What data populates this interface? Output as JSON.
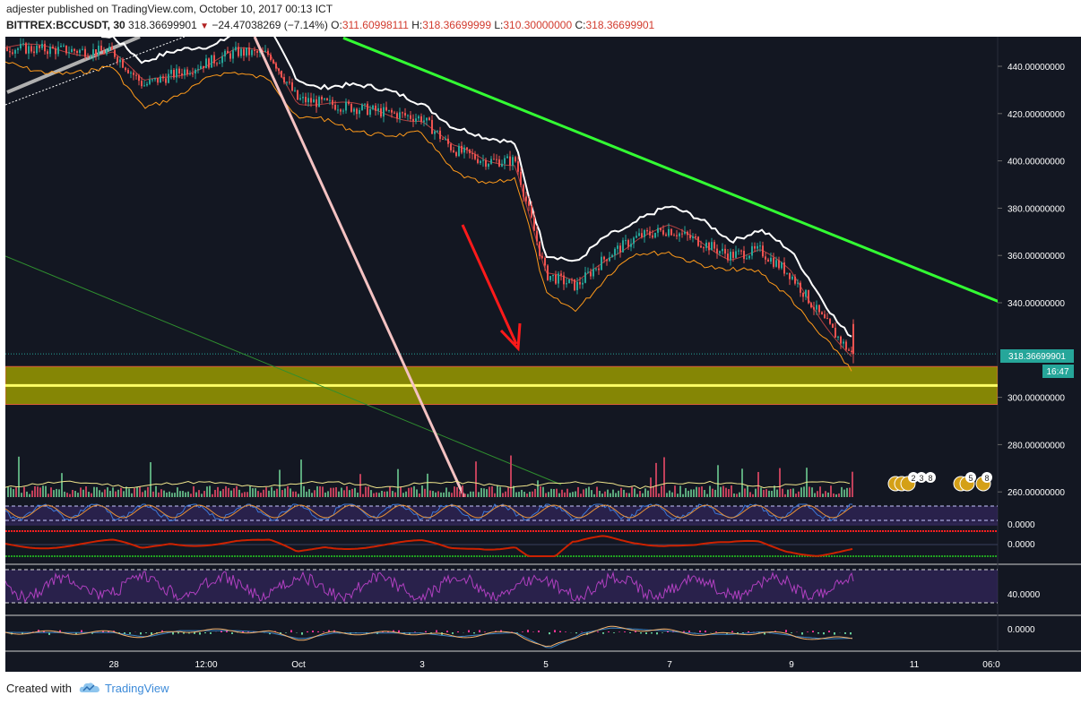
{
  "header": {
    "publisher": "adjester",
    "published_text": "published on TradingView.com, October 10, 2017 00:13 ICT",
    "symbol": "BITTREX:BCCUSDT, 30",
    "last_price": "318.36699901",
    "change": "−24.47038269 (−7.14%)",
    "open_label": "O:",
    "open_value": "311.60998111",
    "high_label": "H:",
    "high_value": "318.36699999",
    "low_label": "L:",
    "low_value": "310.30000000",
    "close_label": "C:",
    "close_value": "318.36699901"
  },
  "price_axis": {
    "ticks": [
      "440.00000000",
      "420.00000000",
      "400.00000000",
      "380.00000000",
      "360.00000000",
      "340.00000000",
      "300.00000000",
      "280.00000000",
      "260.00000000"
    ],
    "current_price_label": "318.36699901",
    "countdown_label": "16:47"
  },
  "time_axis": {
    "ticks": [
      "28",
      "12:00",
      "Oct",
      "3",
      "5",
      "7",
      "9",
      "11",
      "06:0"
    ]
  },
  "indicator_axes": {
    "stoch_value": "0.0000",
    "osc_value": "0.0000",
    "rsi_value": "40.0000",
    "macd_value": "0.0000"
  },
  "event_badges": {
    "group1_counts": [
      "2",
      "3",
      "8"
    ],
    "group2_counts": [
      "5",
      "8"
    ]
  },
  "footer": {
    "created_with": "Created with",
    "brand": "TradingView"
  },
  "colors": {
    "background": "#131722",
    "trendline_green": "#33ff33",
    "trendline_pink": "#f4c2c2",
    "arrow_red": "#ff1a1a",
    "support_zone": "#9a9a00",
    "support_line": "#ffff66",
    "price_tag": "#26a69a",
    "bollinger_upper": "#ffffff",
    "bollinger_lower": "#ff9a1a",
    "candle_up": "#26a69a",
    "candle_down": "#ef5350"
  },
  "chart_data": {
    "type": "candlestick",
    "title": "BITTREX:BCCUSDT, 30",
    "ylim": [
      255,
      452
    ],
    "price_path": [
      {
        "x": "Sep 27",
        "y": 448
      },
      {
        "x": "Sep 28",
        "y": 446
      },
      {
        "x": "Sep 28 12:00",
        "y": 432
      },
      {
        "x": "Sep 29",
        "y": 446
      },
      {
        "x": "Sep 30",
        "y": 445
      },
      {
        "x": "Oct 1",
        "y": 426
      },
      {
        "x": "Oct 2",
        "y": 422
      },
      {
        "x": "Oct 3",
        "y": 418
      },
      {
        "x": "Oct 3 12:00",
        "y": 405
      },
      {
        "x": "Oct 4",
        "y": 400
      },
      {
        "x": "Oct 4 12:00",
        "y": 400
      },
      {
        "x": "Oct 5",
        "y": 352
      },
      {
        "x": "Oct 5 12:00",
        "y": 347
      },
      {
        "x": "Oct 6",
        "y": 360
      },
      {
        "x": "Oct 6 12:00",
        "y": 368
      },
      {
        "x": "Oct 7",
        "y": 371
      },
      {
        "x": "Oct 7 12:00",
        "y": 366
      },
      {
        "x": "Oct 8",
        "y": 360
      },
      {
        "x": "Oct 8 12:00",
        "y": 362
      },
      {
        "x": "Oct 9",
        "y": 352
      },
      {
        "x": "Oct 9 12:00",
        "y": 334
      },
      {
        "x": "Oct 10",
        "y": 318.37
      }
    ],
    "green_trendline": [
      {
        "x": "Oct 1 18:00",
        "y": 452
      },
      {
        "x": "Oct 12 18:00",
        "y": 337
      }
    ],
    "support_zone": [
      297,
      313
    ],
    "support_line": 305,
    "last_price": 318.36699901
  }
}
